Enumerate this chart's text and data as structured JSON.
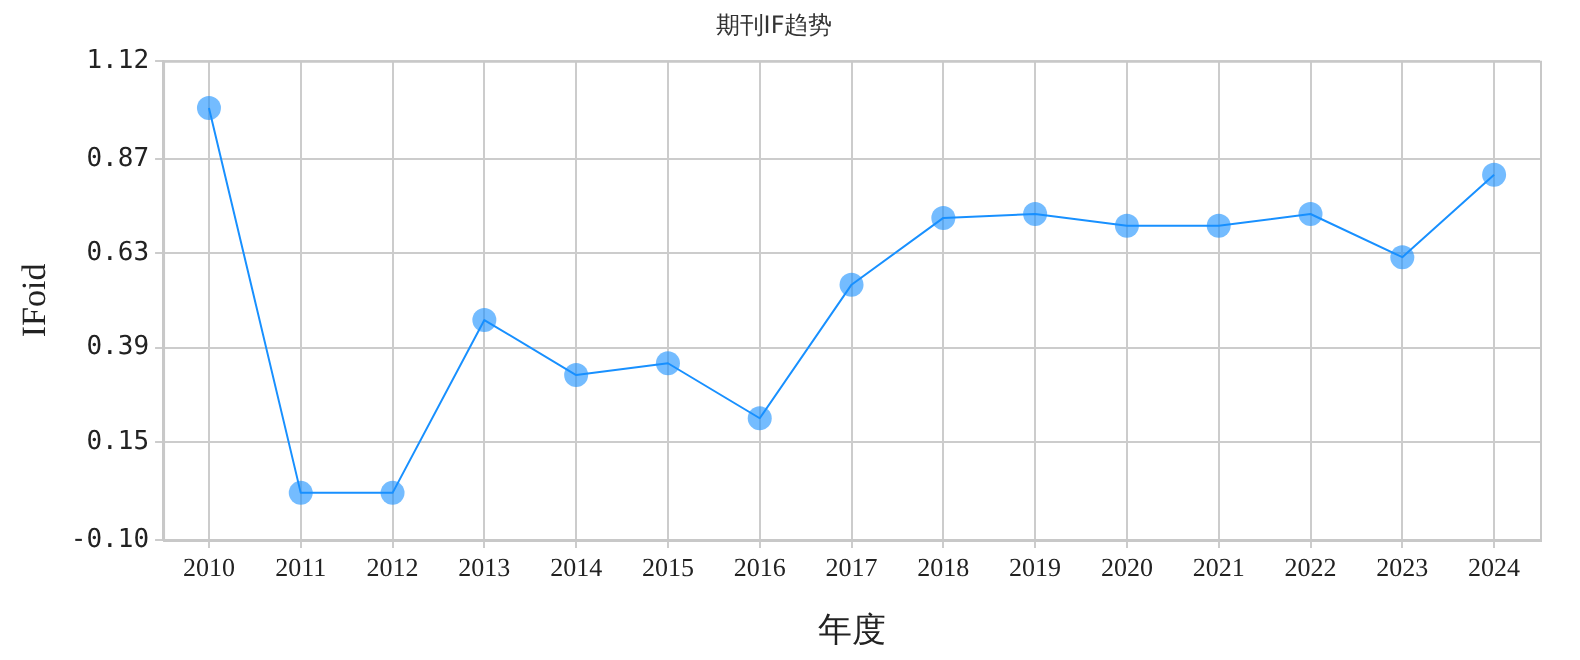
{
  "chart_data": {
    "type": "line",
    "title": "期刊IF趋势",
    "xlabel": "年度",
    "ylabel": "IFoid",
    "categories": [
      "2010",
      "2011",
      "2012",
      "2013",
      "2014",
      "2015",
      "2016",
      "2017",
      "2018",
      "2019",
      "2020",
      "2021",
      "2022",
      "2023",
      "2024"
    ],
    "series": [
      {
        "color": "#1890ff",
        "values": [
          1.0,
          0.02,
          0.02,
          0.46,
          0.32,
          0.35,
          0.21,
          0.55,
          0.72,
          0.73,
          0.7,
          0.7,
          0.73,
          0.62,
          0.83
        ]
      }
    ],
    "ylim": [
      -0.1,
      1.12
    ],
    "yticks": [
      "-0.10",
      0.15,
      0.39,
      0.63,
      0.87,
      1.12
    ],
    "grid": true,
    "legend": false,
    "marker": "circle",
    "line_style": "solid"
  }
}
